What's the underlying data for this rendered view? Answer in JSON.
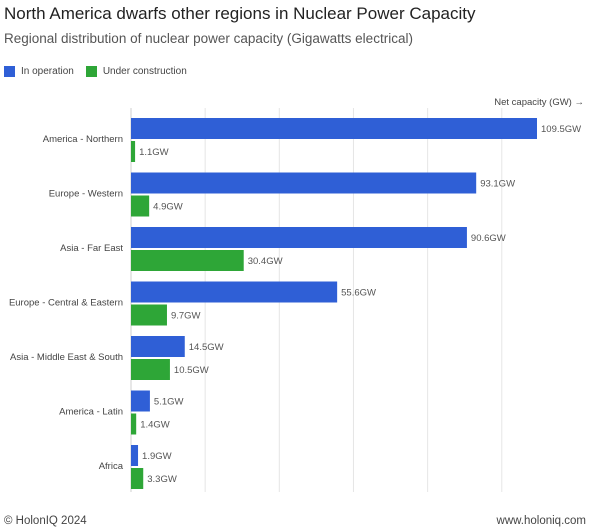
{
  "title": "North America dwarfs other regions in Nuclear Power Capacity",
  "subtitle": "Regional distribution of nuclear power capacity (Gigawatts electrical)",
  "axis_note": "Net capacity (GW) →",
  "footer": {
    "left": "© HolonIQ 2024",
    "right": "www.holoniq.com"
  },
  "chart_data": {
    "type": "bar",
    "orientation": "horizontal",
    "categories": [
      "America - Northern",
      "Europe - Western",
      "Asia - Far East",
      "Europe - Central & Eastern",
      "Asia - Middle East & South",
      "America - Latin",
      "Africa"
    ],
    "series": [
      {
        "name": "In operation",
        "color": "#2f5fd6",
        "values": [
          109.5,
          93.1,
          90.6,
          55.6,
          14.5,
          5.1,
          1.9
        ]
      },
      {
        "name": "Under construction",
        "color": "#2ea637",
        "values": [
          1.1,
          4.9,
          30.4,
          9.7,
          10.5,
          1.4,
          3.3
        ]
      }
    ],
    "value_suffix": "GW",
    "xlim": [
      0,
      120
    ],
    "gridlines": [
      20,
      40,
      60,
      80,
      100
    ],
    "grid": true,
    "legend_position": "top-left"
  }
}
